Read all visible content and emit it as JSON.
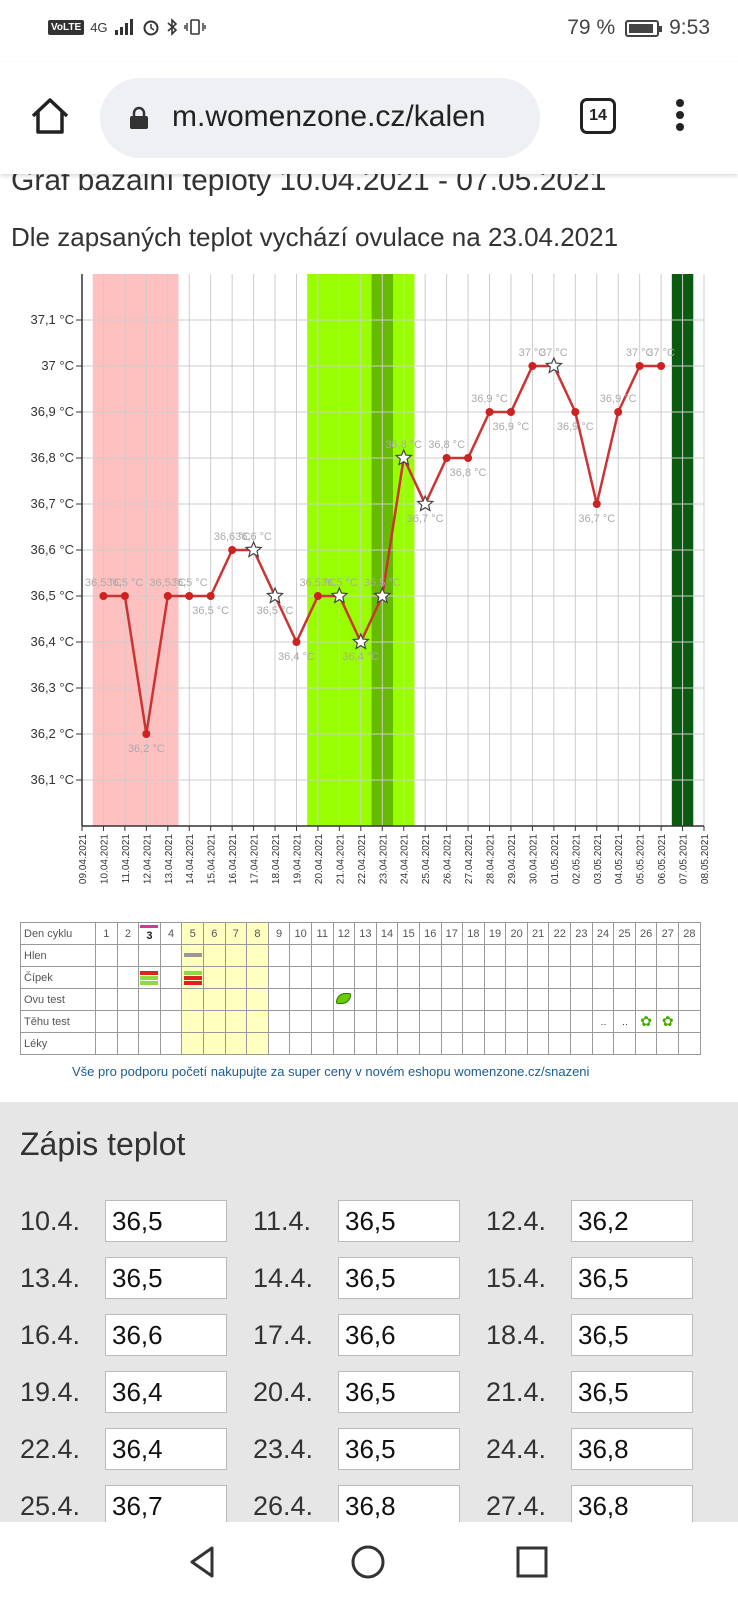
{
  "status": {
    "network": "4G",
    "volte": "VoLTE",
    "battery_percent": "79 %",
    "battery_level": 0.79,
    "time": "9:53"
  },
  "browser": {
    "url": "m.womenzone.cz/kalen",
    "tab_count": "14"
  },
  "page": {
    "title": "Graf bazální teploty 10.04.2021 - 07.05.2021",
    "subtitle": "Dle zapsaných teplot vychází ovulace na 23.04.2021"
  },
  "chart_data": {
    "type": "line",
    "y_ticks": [
      "37,1 °C",
      "37 °C",
      "36,9 °C",
      "36,8 °C",
      "36,7 °C",
      "36,6 °C",
      "36,5 °C",
      "36,4 °C",
      "36,3 °C",
      "36,2 °C",
      "36,1 °C"
    ],
    "y_tick_values": [
      37.1,
      37.0,
      36.9,
      36.8,
      36.7,
      36.6,
      36.5,
      36.4,
      36.3,
      36.2,
      36.1
    ],
    "ylim": [
      36.0,
      37.2
    ],
    "x_dates": [
      "09.04.2021",
      "10.04.2021",
      "11.04.2021",
      "12.04.2021",
      "13.04.2021",
      "14.04.2021",
      "15.04.2021",
      "16.04.2021",
      "17.04.2021",
      "18.04.2021",
      "19.04.2021",
      "20.04.2021",
      "21.04.2021",
      "22.04.2021",
      "23.04.2021",
      "24.04.2021",
      "25.04.2021",
      "26.04.2021",
      "27.04.2021",
      "28.04.2021",
      "29.04.2021",
      "30.04.2021",
      "01.05.2021",
      "02.05.2021",
      "03.05.2021",
      "04.05.2021",
      "05.05.2021",
      "06.05.2021",
      "07.05.2021",
      "08.05.2021"
    ],
    "series": [
      {
        "points": [
          {
            "date": "10.04.2021",
            "value": 36.5,
            "label": "36,5 °C",
            "marker": "dot"
          },
          {
            "date": "11.04.2021",
            "value": 36.5,
            "label": "36,5 °C",
            "marker": "dot"
          },
          {
            "date": "12.04.2021",
            "value": 36.2,
            "label": "36,2 °C",
            "marker": "dot"
          },
          {
            "date": "13.04.2021",
            "value": 36.5,
            "label": "36,5 °C",
            "marker": "dot"
          },
          {
            "date": "14.04.2021",
            "value": 36.5,
            "label": "36,5 °C",
            "marker": "dot"
          },
          {
            "date": "15.04.2021",
            "value": 36.5,
            "label": "36,5 °C",
            "marker": "dot"
          },
          {
            "date": "16.04.2021",
            "value": 36.6,
            "label": "36,6 °C",
            "marker": "dot"
          },
          {
            "date": "17.04.2021",
            "value": 36.6,
            "label": "36,6 °C",
            "marker": "star"
          },
          {
            "date": "18.04.2021",
            "value": 36.5,
            "label": "36,5 °C",
            "marker": "star"
          },
          {
            "date": "19.04.2021",
            "value": 36.4,
            "label": "36,4 °C",
            "marker": "dot"
          },
          {
            "date": "20.04.2021",
            "value": 36.5,
            "label": "36,5 °C",
            "marker": "dot"
          },
          {
            "date": "21.04.2021",
            "value": 36.5,
            "label": "36,5 °C",
            "marker": "star"
          },
          {
            "date": "22.04.2021",
            "value": 36.4,
            "label": "36,4 °C",
            "marker": "star"
          },
          {
            "date": "23.04.2021",
            "value": 36.5,
            "label": "36,5 °C",
            "marker": "star"
          },
          {
            "date": "24.04.2021",
            "value": 36.8,
            "label": "36,8 °C",
            "marker": "star"
          },
          {
            "date": "25.04.2021",
            "value": 36.7,
            "label": "36,7 °C",
            "marker": "star"
          },
          {
            "date": "26.04.2021",
            "value": 36.8,
            "label": "36,8 °C",
            "marker": "dot"
          },
          {
            "date": "27.04.2021",
            "value": 36.8,
            "label": "36,8 °C",
            "marker": "dot"
          },
          {
            "date": "28.04.2021",
            "value": 36.9,
            "label": "36,9 °C",
            "marker": "dot"
          },
          {
            "date": "29.04.2021",
            "value": 36.9,
            "label": "36,9 °C",
            "marker": "dot"
          },
          {
            "date": "30.04.2021",
            "value": 37.0,
            "label": "37 °C",
            "marker": "dot"
          },
          {
            "date": "01.05.2021",
            "value": 37.0,
            "label": "37 °C",
            "marker": "star"
          },
          {
            "date": "02.05.2021",
            "value": 36.9,
            "label": "36,9 °C",
            "marker": "dot"
          },
          {
            "date": "03.05.2021",
            "value": 36.7,
            "label": "36,7 °C",
            "marker": "dot"
          },
          {
            "date": "04.05.2021",
            "value": 36.9,
            "label": "36,9 °C",
            "marker": "dot"
          },
          {
            "date": "05.05.2021",
            "value": 37.0,
            "label": "37 °C",
            "marker": "dot"
          },
          {
            "date": "06.05.2021",
            "value": 37.0,
            "label": "37 °C",
            "marker": "dot"
          }
        ]
      }
    ],
    "bands": [
      {
        "kind": "menstruation",
        "from": "10.04.2021",
        "to": "13.04.2021",
        "color": "#ffc0c0"
      },
      {
        "kind": "fertile",
        "from": "20.04.2021",
        "to": "24.04.2021",
        "color": "#99ff00"
      },
      {
        "kind": "ovulation",
        "from": "23.04.2021",
        "to": "23.04.2021",
        "color": "#66bb00"
      },
      {
        "kind": "today",
        "from": "07.05.2021",
        "to": "07.05.2021",
        "color": "#0a5a10"
      }
    ],
    "grid": true,
    "line_color": "#cc3333"
  },
  "cycle_table": {
    "rows": [
      "Den cyklu",
      "Hlen",
      "Čípek",
      "Ovu test",
      "Těhu test",
      "Léky"
    ],
    "days": [
      "1",
      "2",
      "3",
      "4",
      "5",
      "6",
      "7",
      "8",
      "9",
      "10",
      "11",
      "12",
      "13",
      "14",
      "15",
      "16",
      "17",
      "18",
      "19",
      "20",
      "21",
      "22",
      "23",
      "24",
      "25",
      "26",
      "27",
      "28"
    ],
    "highlighted_days": [
      "5",
      "6",
      "7",
      "8"
    ],
    "bold_day": "3",
    "ovu_test_positive_day": "12",
    "tehu_test_days": [
      {
        "day": "24",
        "icon": "negative-test-icon",
        "text": "‥"
      },
      {
        "day": "25",
        "icon": "negative-test-icon",
        "text": "‥"
      },
      {
        "day": "26",
        "icon": "clover-icon",
        "text": "✿"
      },
      {
        "day": "27",
        "icon": "clover-icon",
        "text": "✿"
      }
    ]
  },
  "shop_link": "Vše pro podporu početí nakupujte za super ceny v novém eshopu womenzone.cz/snazeni",
  "zapis": {
    "title": "Zápis teplot",
    "entries": [
      {
        "date": "10.4.",
        "value": "36,5"
      },
      {
        "date": "11.4.",
        "value": "36,5"
      },
      {
        "date": "12.4.",
        "value": "36,2"
      },
      {
        "date": "13.4.",
        "value": "36,5"
      },
      {
        "date": "14.4.",
        "value": "36,5"
      },
      {
        "date": "15.4.",
        "value": "36,5"
      },
      {
        "date": "16.4.",
        "value": "36,6"
      },
      {
        "date": "17.4.",
        "value": "36,6"
      },
      {
        "date": "18.4.",
        "value": "36,5"
      },
      {
        "date": "19.4.",
        "value": "36,4"
      },
      {
        "date": "20.4.",
        "value": "36,5"
      },
      {
        "date": "21.4.",
        "value": "36,5"
      },
      {
        "date": "22.4.",
        "value": "36,4"
      },
      {
        "date": "23.4.",
        "value": "36,5"
      },
      {
        "date": "24.4.",
        "value": "36,8"
      },
      {
        "date": "25.4.",
        "value": "36,7"
      },
      {
        "date": "26.4.",
        "value": "36,8"
      },
      {
        "date": "27.4.",
        "value": "36,8"
      }
    ]
  }
}
